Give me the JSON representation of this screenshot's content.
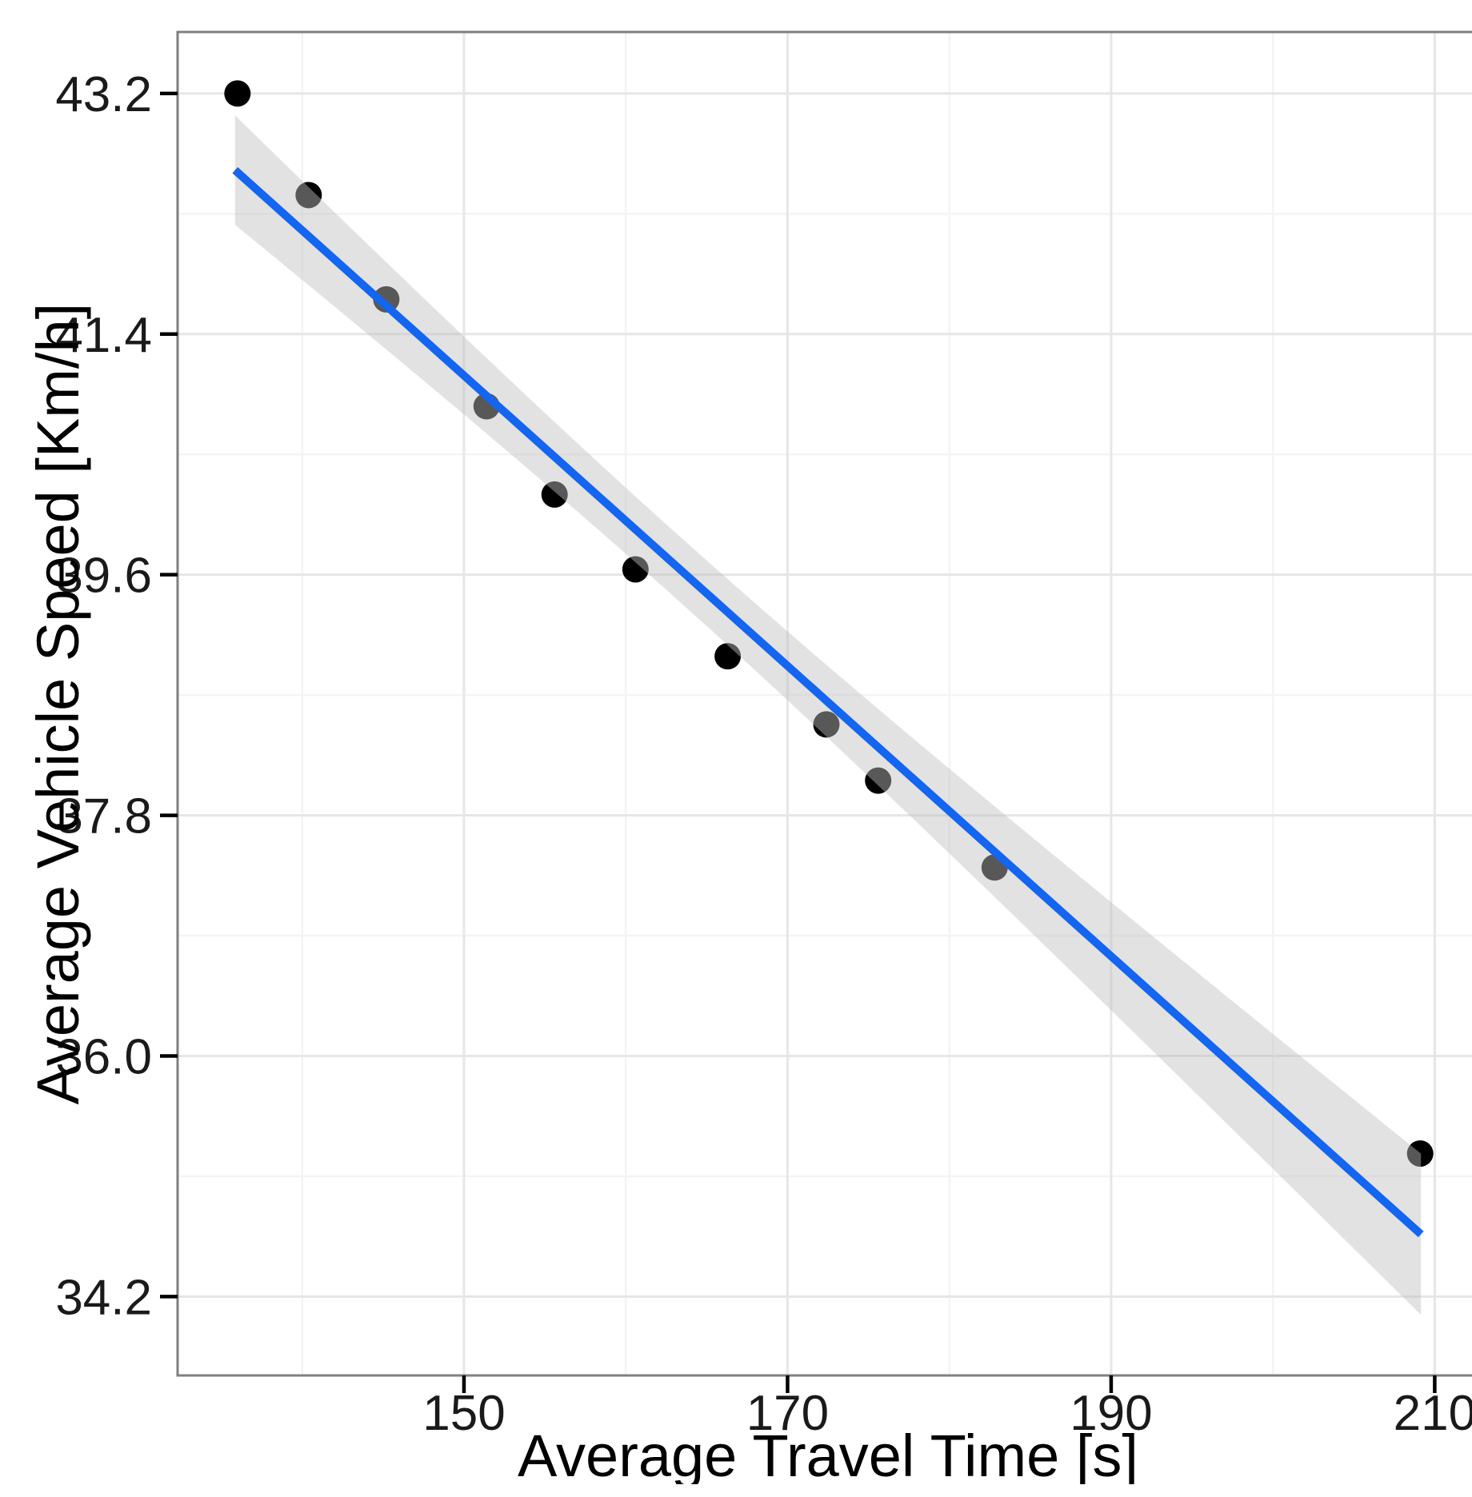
{
  "chart_data": {
    "type": "scatter",
    "title": "",
    "xlabel": "Average Travel Time [s]",
    "ylabel": "Average Vehicle Speed [Km/h]",
    "xlim": [
      132.3,
      212.7
    ],
    "ylim": [
      33.61,
      43.66
    ],
    "x_ticks": [
      150,
      170,
      190,
      210
    ],
    "x_minor_ticks": [
      140,
      160,
      180,
      200
    ],
    "y_ticks": [
      43.2,
      41.4,
      39.6,
      37.8,
      36.0,
      34.2
    ],
    "y_minor_ticks": [
      42.3,
      40.5,
      38.7,
      36.9,
      35.1
    ],
    "grid": true,
    "legend": "none",
    "points": [
      {
        "x": 136.0,
        "y": 43.2
      },
      {
        "x": 140.4,
        "y": 42.44
      },
      {
        "x": 145.2,
        "y": 41.66
      },
      {
        "x": 151.4,
        "y": 40.86
      },
      {
        "x": 155.6,
        "y": 40.2
      },
      {
        "x": 160.6,
        "y": 39.64
      },
      {
        "x": 166.3,
        "y": 38.99
      },
      {
        "x": 172.4,
        "y": 38.48
      },
      {
        "x": 175.6,
        "y": 38.06
      },
      {
        "x": 182.8,
        "y": 37.41
      },
      {
        "x": 209.1,
        "y": 35.27
      }
    ],
    "trend_line": {
      "type": "linear_fit",
      "slope": -0.1086,
      "intercept": 57.38,
      "x_start": 135.85,
      "x_end": 209.15
    },
    "confidence_band": {
      "k": 0.81,
      "n": 11,
      "x_mean": 163.2,
      "sxx": 4553
    },
    "colors": {
      "point": "#000000",
      "trend_line": "#1465EF",
      "band_fill": "#c0c0c0",
      "band_opacity": 0.46,
      "grid_major": "#e6e6e6",
      "grid_minor": "#f4f4f4",
      "panel_border": "#7f7f7f",
      "tick_mark": "#000000",
      "background": "#ffffff"
    }
  }
}
